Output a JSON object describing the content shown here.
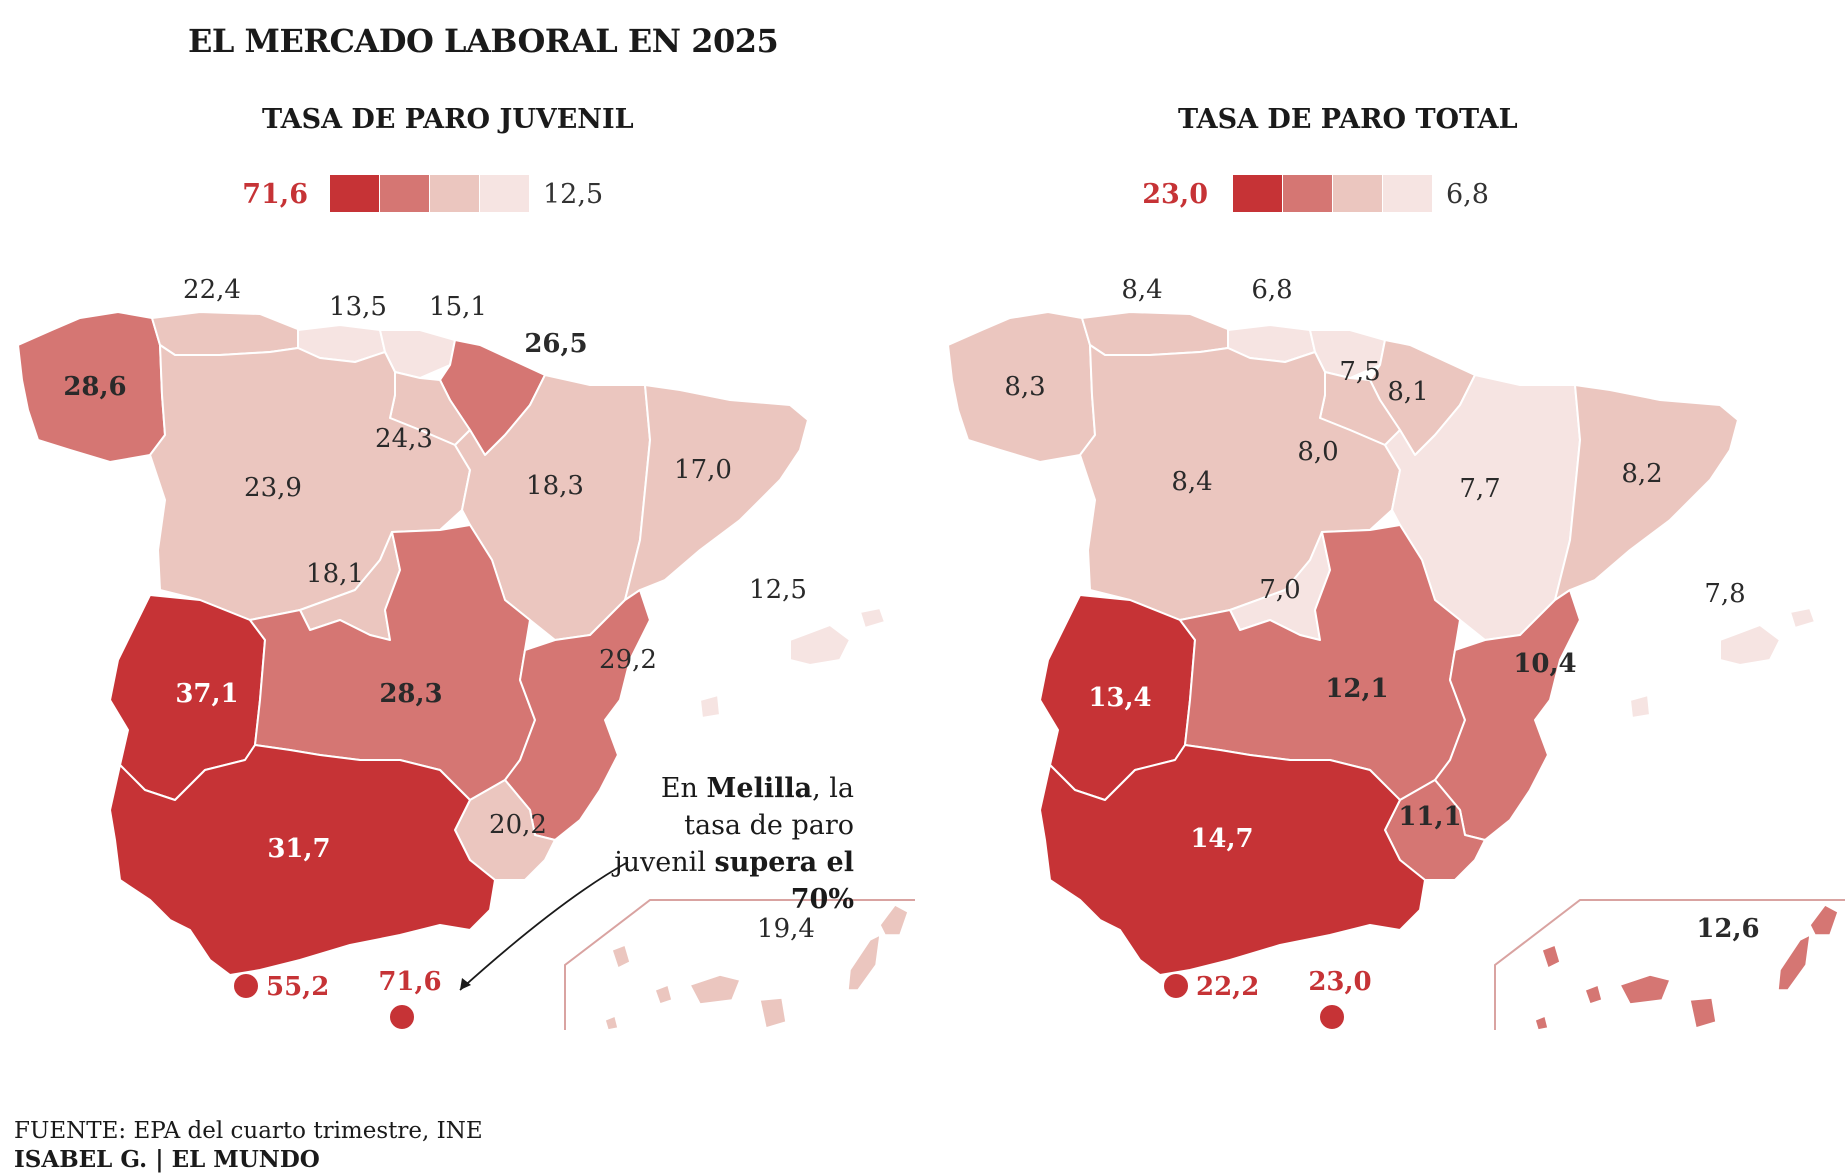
{
  "title": "EL MERCADO LABORAL EN 2025",
  "colors": {
    "c4": "#c63336",
    "c3": "#d57673",
    "c2": "#ebc6bf",
    "c1": "#f6e4e2",
    "border": "#ffffff"
  },
  "annotation": {
    "pre": "En ",
    "bold1": "Melilla",
    "mid": ", la tasa de paro juvenil ",
    "bold2": "supera el 70%"
  },
  "source": {
    "label": "FUENTE:",
    "text": " EPA del cuarto trimestre, INE"
  },
  "credit": "ISABEL G. | EL MUNDO",
  "chart_data": [
    {
      "type": "choropleth",
      "title": "TASA DE PARO JUVENIL",
      "legend": {
        "max": "71,6",
        "min": "12,5",
        "classes": 4
      },
      "regions": {
        "galicia": "28,6",
        "asturias": "22,4",
        "cantabria": "13,5",
        "pais_vasco": "15,1",
        "navarra": "26,5",
        "la_rioja": "24,3",
        "castilla_leon": "23,9",
        "aragon": "18,3",
        "cataluna": "17,0",
        "madrid": "18,1",
        "extremadura": "37,1",
        "castilla_la_mancha": "28,3",
        "valencia": "29,2",
        "murcia": "20,2",
        "andalucia": "31,7",
        "baleares": "12,5",
        "canarias": "19,4",
        "ceuta": "55,2",
        "melilla": "71,6"
      }
    },
    {
      "type": "choropleth",
      "title": "TASA DE PARO TOTAL",
      "legend": {
        "max": "23,0",
        "min": "6,8",
        "classes": 4
      },
      "regions": {
        "galicia": "8,3",
        "asturias": "8,4",
        "cantabria": "6,8",
        "pais_vasco": "7,5",
        "navarra": "8,1",
        "la_rioja": "8,0",
        "castilla_leon": "8,4",
        "aragon": "7,7",
        "cataluna": "8,2",
        "madrid": "7,0",
        "extremadura": "13,4",
        "castilla_la_mancha": "12,1",
        "valencia": "10,4",
        "murcia": "11,1",
        "andalucia": "14,7",
        "baleares": "7,8",
        "canarias": "12,6",
        "ceuta": "22,2",
        "melilla": "23,0"
      }
    }
  ]
}
